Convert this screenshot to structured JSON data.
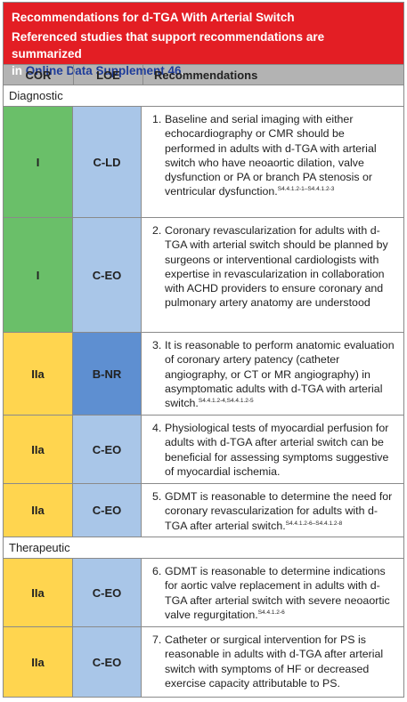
{
  "banner": {
    "title": "Recommendations for d-TGA With Arterial Switch",
    "line2_prefix": "Referenced studies that support recommendations are summarized",
    "line3_prefix": "in ",
    "link_text": "Online Data Supplement 46",
    "line3_suffix": "."
  },
  "columns": {
    "cor": "COR",
    "loe": "LOE",
    "recommendations": "Recommendations"
  },
  "sections": [
    {
      "label": "Diagnostic"
    },
    {
      "label": "Therapeutic"
    }
  ],
  "rows": [
    {
      "cor": "I",
      "loe": "C-LD",
      "num": "1.",
      "text": "Baseline and serial imaging with either echocardiography or CMR should be performed in adults with d-TGA with arterial switch who have neoaortic dilation, valve dysfunction or PA or branch PA stenosis or ventricular dysfunction.",
      "ref": "S4.4.1.2-1–S4.4.1.2-3",
      "cor_color": "#6abf69",
      "loe_color": "#a9c6e8"
    },
    {
      "cor": "I",
      "loe": "C-EO",
      "num": "2.",
      "text": "Coronary revascularization for adults with d-TGA with arterial switch should be planned by surgeons or interventional cardiologists with expertise in revascularization in collaboration with ACHD providers to ensure coronary and pulmonary artery anatomy are understood",
      "ref": "",
      "cor_color": "#6abf69",
      "loe_color": "#a9c6e8"
    },
    {
      "cor": "IIa",
      "loe": "B-NR",
      "num": "3.",
      "text": "It is reasonable to perform anatomic evaluation of coronary artery patency (catheter angiography, or CT or MR angiography) in asymptomatic adults with d-TGA with arterial switch.",
      "ref": "S4.4.1.2-4,S4.4.1.2-5",
      "cor_color": "#ffd54f",
      "loe_color": "#5e8fd1"
    },
    {
      "cor": "IIa",
      "loe": "C-EO",
      "num": "4.",
      "text": "Physiological tests of myocardial perfusion for adults with d-TGA after arterial switch can be beneficial for assessing symptoms suggestive of myocardial ischemia.",
      "ref": "",
      "cor_color": "#ffd54f",
      "loe_color": "#a9c6e8"
    },
    {
      "cor": "IIa",
      "loe": "C-EO",
      "num": "5.",
      "text": "GDMT is reasonable to determine the need for coronary revascularization for adults with d-TGA after arterial switch.",
      "ref": "S4.4.1.2-6–S4.4.1.2-8",
      "cor_color": "#ffd54f",
      "loe_color": "#a9c6e8"
    },
    {
      "cor": "IIa",
      "loe": "C-EO",
      "num": "6.",
      "text": "GDMT is reasonable to determine indications for aortic valve replacement in adults with d-TGA after arterial switch with severe neoaortic valve regurgitation.",
      "ref": "S4.4.1.2-6",
      "cor_color": "#ffd54f",
      "loe_color": "#a9c6e8"
    },
    {
      "cor": "IIa",
      "loe": "C-EO",
      "num": "7.",
      "text": "Catheter or surgical intervention for PS is reasonable in adults with d-TGA after arterial switch with symptoms of HF or decreased exercise capacity attributable to PS.",
      "ref": "",
      "cor_color": "#ffd54f",
      "loe_color": "#a9c6e8"
    }
  ]
}
